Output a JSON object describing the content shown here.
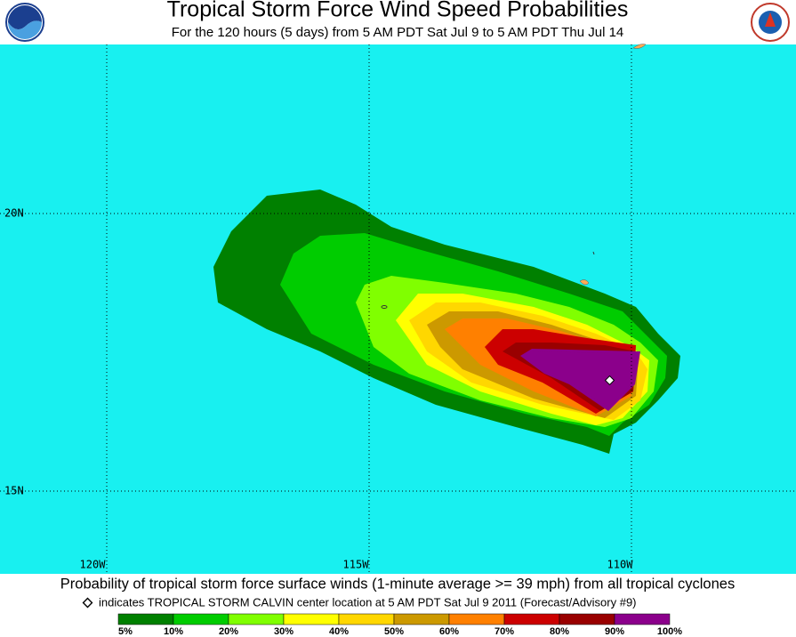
{
  "header": {
    "title": "Tropical Storm Force Wind Speed Probabilities",
    "subtitle": "For the 120 hours (5 days) from 5 AM PDT Sat Jul 9 to 5 AM PDT Thu Jul 14"
  },
  "map": {
    "lat_labels": [
      "20N",
      "15N"
    ],
    "lon_labels": [
      "120W",
      "115W",
      "110W"
    ]
  },
  "footer": {
    "caption": "Probability of tropical storm force surface winds (1-minute average >= 39 mph) from all tropical cyclones",
    "note": "indicates TROPICAL STORM CALVIN center location at 5 AM PDT Sat Jul 9 2011 (Forecast/Advisory #9)"
  },
  "legend": {
    "labels": [
      "5%",
      "10%",
      "20%",
      "30%",
      "40%",
      "50%",
      "60%",
      "70%",
      "80%",
      "90%",
      "100%"
    ],
    "colors": [
      "#008000",
      "#00cc00",
      "#80ff00",
      "#ffff00",
      "#ffd700",
      "#cc9900",
      "#ff8000",
      "#cc0000",
      "#990000",
      "#8b008b"
    ]
  }
}
